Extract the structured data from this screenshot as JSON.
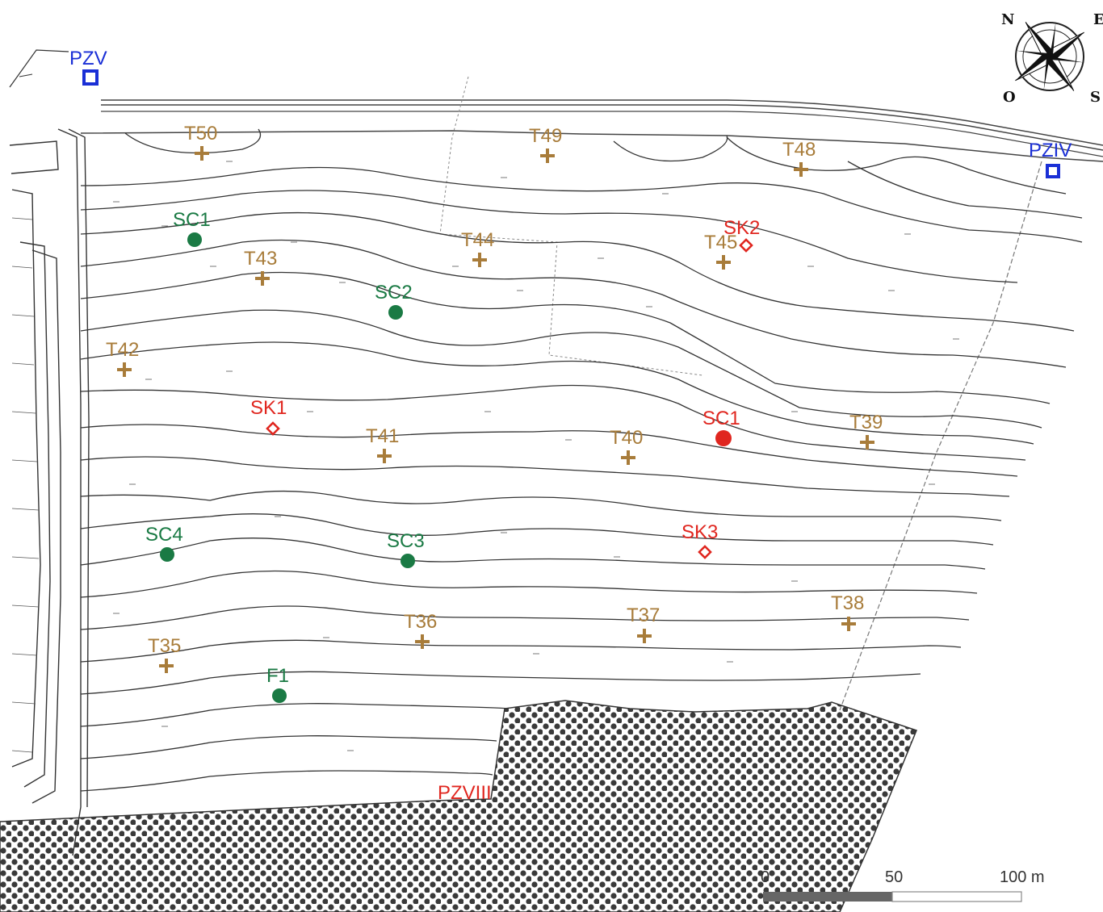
{
  "map": {
    "compass": {
      "north": "N",
      "east": "E",
      "south": "S",
      "west": "O"
    },
    "scale_bar": {
      "labels": [
        "0",
        "50",
        "100 m"
      ]
    },
    "piezometers": [
      {
        "label": "PZV",
        "color": "#1a2fd6"
      },
      {
        "label": "PZIV",
        "color": "#1a2fd6"
      },
      {
        "label": "PZVIII",
        "color": "#e0261f"
      }
    ],
    "tensiometers": [
      "T50",
      "T49",
      "T48",
      "T45",
      "T44",
      "T43",
      "T42",
      "T41",
      "T40",
      "T39",
      "T38",
      "T37",
      "T36",
      "T35"
    ],
    "green_points": [
      "SC1",
      "SC2",
      "SC4",
      "SC3",
      "F1"
    ],
    "red_points": [
      "SK2",
      "SK1",
      "SC1",
      "SK3"
    ],
    "colors": {
      "tensiometer": "#a87c3a",
      "green": "#1a7a44",
      "red": "#e0261f",
      "blue": "#1a2fd6",
      "contour": "#333333"
    }
  }
}
